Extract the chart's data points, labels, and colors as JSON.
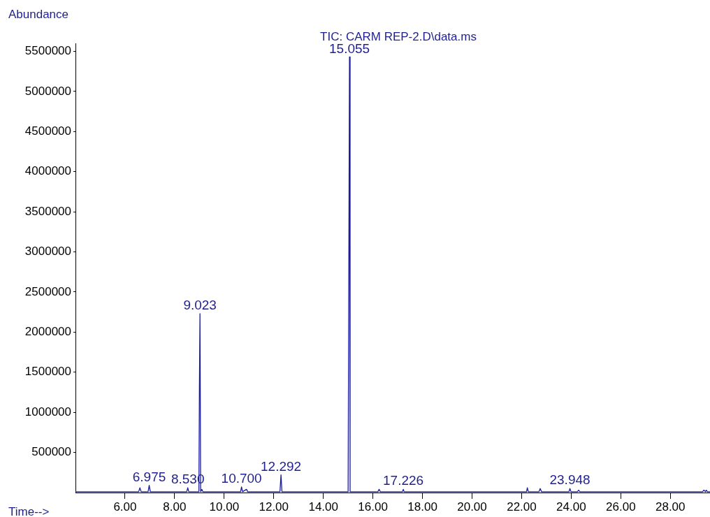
{
  "chart_data": {
    "type": "line",
    "title": "TIC: CARM REP-2.D\\data.ms",
    "xlabel": "Time-->",
    "ylabel": "Abundance",
    "series": [
      {
        "color": "#1c1c9c",
        "x": [
          4.0,
          6.55,
          6.6,
          6.65,
          6.93,
          6.975,
          7.02,
          8.49,
          8.53,
          8.57,
          8.98,
          9.0,
          9.023,
          9.05,
          9.1,
          9.14,
          10.66,
          10.7,
          10.74,
          10.9,
          10.95,
          12.25,
          12.292,
          12.33,
          15.0,
          15.03,
          15.055,
          15.08,
          16.2,
          16.25,
          16.3,
          17.19,
          17.226,
          17.26,
          22.2,
          22.23,
          22.27,
          22.7,
          22.75,
          22.8,
          23.91,
          23.948,
          23.99,
          24.25,
          24.3,
          24.35,
          29.3,
          29.35,
          29.42,
          29.45,
          29.5,
          29.6
        ],
        "values": [
          10000,
          10000,
          60000,
          10000,
          10000,
          90000,
          10000,
          10000,
          60000,
          10000,
          10000,
          1300000,
          2230000,
          10000,
          40000,
          10000,
          10000,
          70000,
          10000,
          40000,
          10000,
          10000,
          220000,
          10000,
          10000,
          3000000,
          5430000,
          10000,
          10000,
          40000,
          10000,
          10000,
          40000,
          10000,
          10000,
          60000,
          10000,
          10000,
          50000,
          10000,
          10000,
          50000,
          10000,
          10000,
          30000,
          10000,
          10000,
          30000,
          10000,
          30000,
          10000,
          10000
        ]
      }
    ],
    "annotations": [
      {
        "text": "6.975",
        "x": 6.975,
        "y": 90000
      },
      {
        "text": "8.530",
        "x": 8.53,
        "y": 60000
      },
      {
        "text": "9.023",
        "x": 9.023,
        "y": 2230000
      },
      {
        "text": "10.700",
        "x": 10.7,
        "y": 70000
      },
      {
        "text": "12.292",
        "x": 12.292,
        "y": 220000
      },
      {
        "text": "15.055",
        "x": 15.055,
        "y": 5430000
      },
      {
        "text": "17.226",
        "x": 17.226,
        "y": 40000
      },
      {
        "text": "23.948",
        "x": 23.948,
        "y": 50000
      }
    ],
    "xlim": [
      4.0,
      29.6
    ],
    "ylim": [
      0,
      5600000
    ],
    "xticks": [
      {
        "value": 6,
        "label": "6.00"
      },
      {
        "value": 8,
        "label": "8.00"
      },
      {
        "value": 10,
        "label": "10.00"
      },
      {
        "value": 12,
        "label": "12.00"
      },
      {
        "value": 14,
        "label": "14.00"
      },
      {
        "value": 16,
        "label": "16.00"
      },
      {
        "value": 18,
        "label": "18.00"
      },
      {
        "value": 20,
        "label": "20.00"
      },
      {
        "value": 22,
        "label": "22.00"
      },
      {
        "value": 24,
        "label": "24.00"
      },
      {
        "value": 26,
        "label": "26.00"
      },
      {
        "value": 28,
        "label": "28.00"
      }
    ],
    "yticks": [
      500000,
      1000000,
      1500000,
      2000000,
      2500000,
      3000000,
      3500000,
      4000000,
      4500000,
      5000000,
      5500000
    ],
    "grid": false,
    "legend": false,
    "marker": "none",
    "line_style": "solid"
  }
}
